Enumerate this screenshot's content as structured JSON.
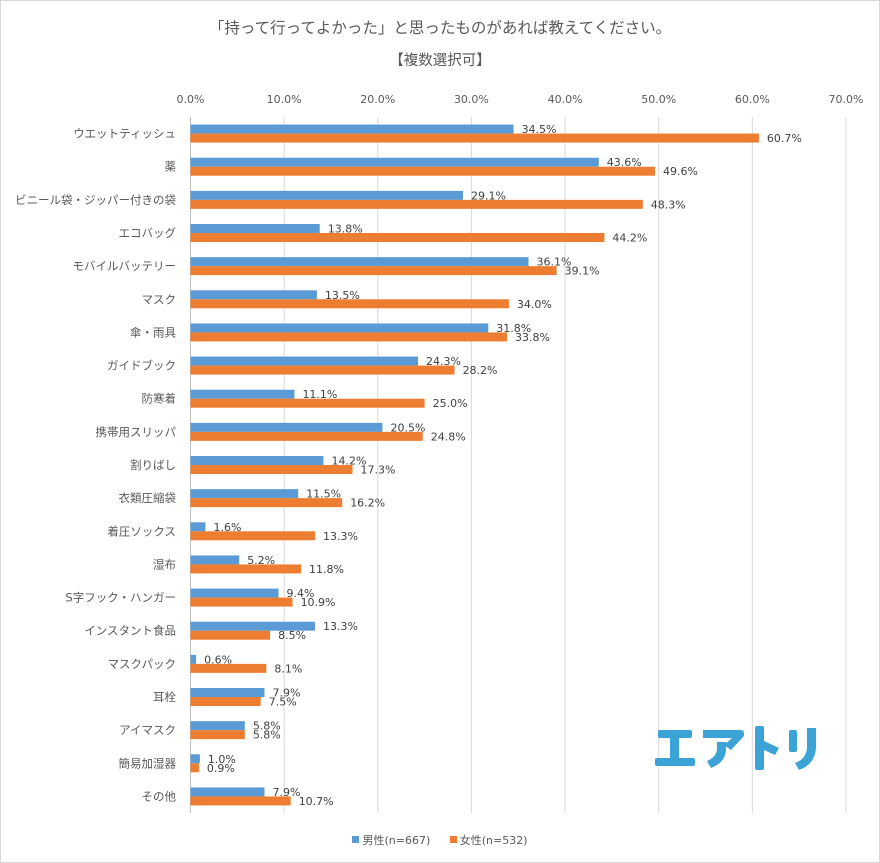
{
  "chart_data": {
    "type": "bar",
    "orientation": "horizontal",
    "title": "「持って行ってよかった」と思ったものがあれば教えてください。",
    "subtitle": "【複数選択可】",
    "xlim": [
      0,
      70
    ],
    "x_ticks": [
      "0.0%",
      "10.0%",
      "20.0%",
      "30.0%",
      "40.0%",
      "50.0%",
      "60.0%",
      "70.0%"
    ],
    "tick_values": [
      0,
      10,
      20,
      30,
      40,
      50,
      60,
      70
    ],
    "grid": true,
    "legend_position": "bottom",
    "categories": [
      "ウエットティッシュ",
      "薬",
      "ビニール袋・ジッパー付きの袋",
      "エコバッグ",
      "モバイルバッテリー",
      "マスク",
      "傘・雨具",
      "ガイドブック",
      "防寒着",
      "携帯用スリッパ",
      "割りばし",
      "衣類圧縮袋",
      "着圧ソックス",
      "湿布",
      "S字フック・ハンガー",
      "インスタント食品",
      "マスクパック",
      "耳栓",
      "アイマスク",
      "簡易加湿器",
      "その他"
    ],
    "series": [
      {
        "name": "男性(n=667)",
        "color": "#5b9bd5",
        "values": [
          34.5,
          43.6,
          29.1,
          13.8,
          36.1,
          13.5,
          31.8,
          24.3,
          11.1,
          20.5,
          14.2,
          11.5,
          1.6,
          5.2,
          9.4,
          13.3,
          0.6,
          7.9,
          5.8,
          1.0,
          7.9
        ],
        "labels": [
          "34.5%",
          "43.6%",
          "29.1%",
          "13.8%",
          "36.1%",
          "13.5%",
          "31.8%",
          "24.3%",
          "11.1%",
          "20.5%",
          "14.2%",
          "11.5%",
          "1.6%",
          "5.2%",
          "9.4%",
          "13.3%",
          "0.6%",
          "7.9%",
          "5.8%",
          "1.0%",
          "7.9%"
        ]
      },
      {
        "name": "女性(n=532)",
        "color": "#ed7d31",
        "values": [
          60.7,
          49.6,
          48.3,
          44.2,
          39.1,
          34.0,
          33.8,
          28.2,
          25.0,
          24.8,
          17.3,
          16.2,
          13.3,
          11.8,
          10.9,
          8.5,
          8.1,
          7.5,
          5.8,
          0.9,
          10.7
        ],
        "labels": [
          "60.7%",
          "49.6%",
          "48.3%",
          "44.2%",
          "39.1%",
          "34.0%",
          "33.8%",
          "28.2%",
          "25.0%",
          "24.8%",
          "17.3%",
          "16.2%",
          "13.3%",
          "11.8%",
          "10.9%",
          "8.5%",
          "8.1%",
          "7.5%",
          "5.8%",
          "0.9%",
          "10.7%"
        ]
      }
    ]
  },
  "logo": {
    "text": "エアトリ",
    "color": "#3ba3d6"
  }
}
